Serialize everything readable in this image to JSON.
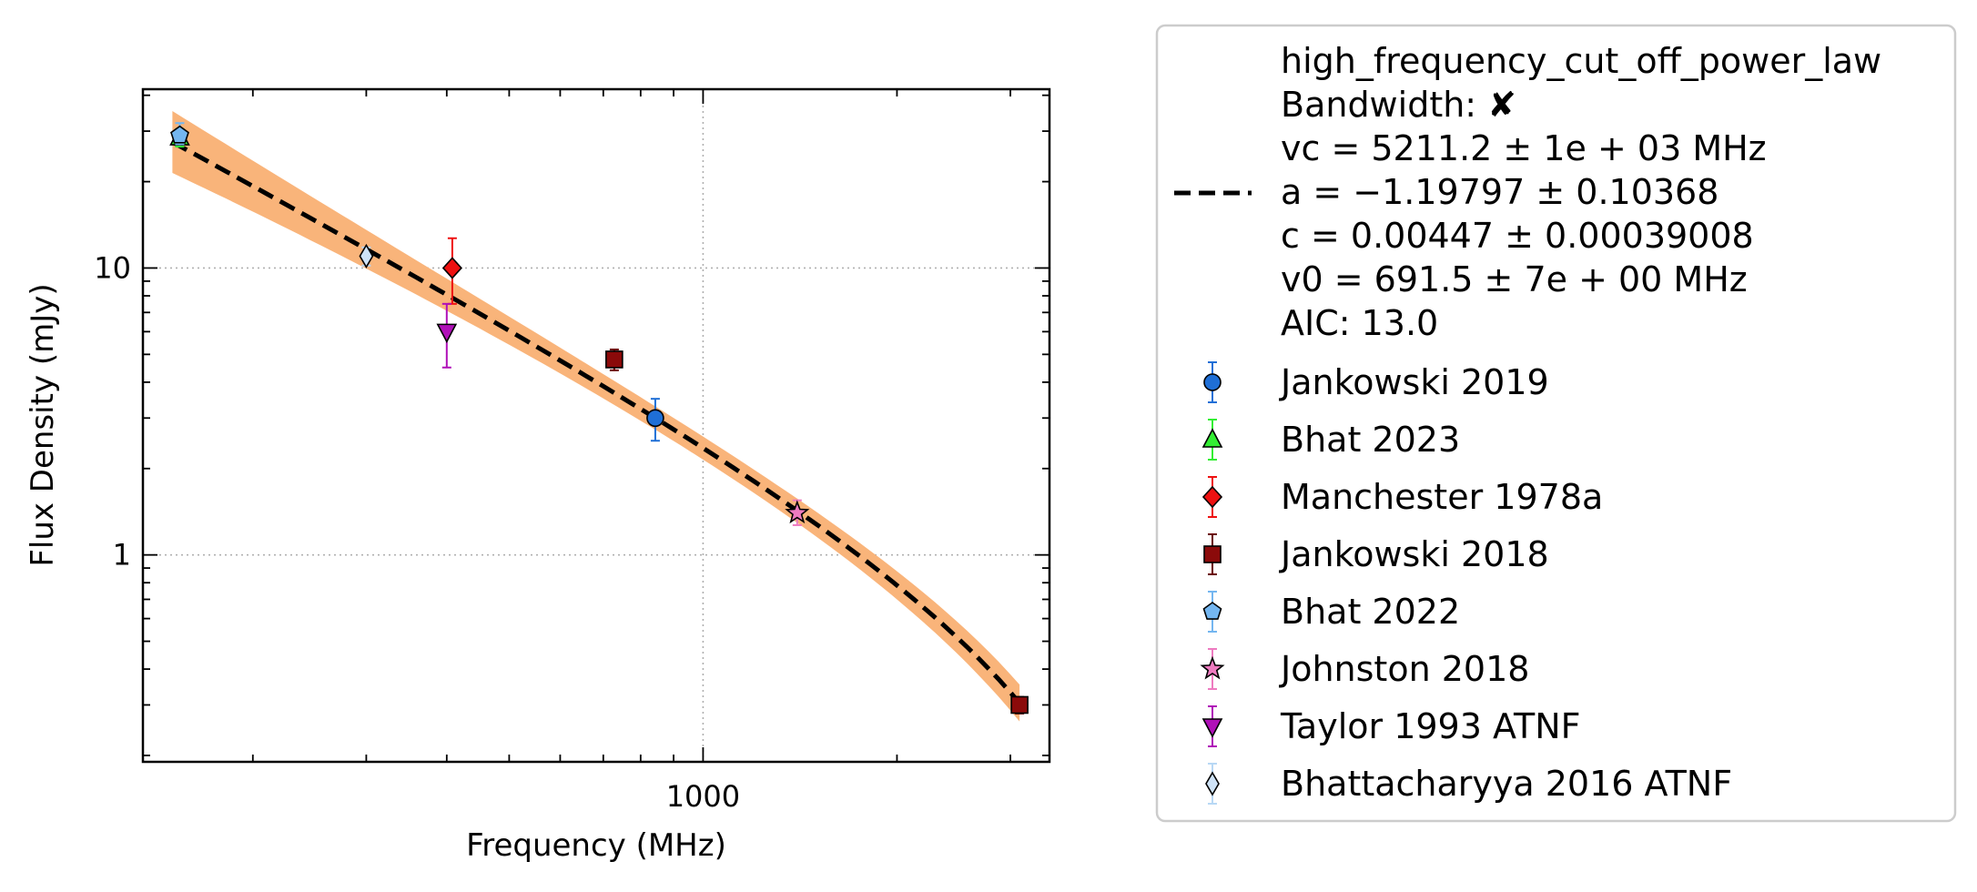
{
  "chart_data": {
    "type": "scatter",
    "xlabel": "Frequency (MHz)",
    "ylabel": "Flux Density (mJy)",
    "x_scale": "log",
    "y_scale": "log",
    "xlim": [
      135,
      3450
    ],
    "ylim": [
      0.19,
      42
    ],
    "x_ticks": [
      {
        "value": 1000,
        "label": "1000"
      }
    ],
    "y_ticks": [
      {
        "value": 1,
        "label": "1"
      },
      {
        "value": 10,
        "label": "10"
      }
    ],
    "grid": true,
    "legend_position": "right, outside plot",
    "fit": {
      "model": "high_frequency_cut_off_power_law",
      "lines": [
        "high_frequency_cut_off_power_law",
        "Bandwidth: ✘",
        "vc = 5211.2 ± 1e + 03 MHz",
        "a = −1.19797 ± 0.10368",
        "c = 0.00447 ± 0.00039008",
        "v0 = 691.5 ± 7e + 00 MHz",
        "AIC: 13.0"
      ],
      "params": {
        "vc": 5211.2,
        "a": -1.19797,
        "c": 0.00447,
        "v0": 691.5
      },
      "x_range": [
        150,
        3100
      ],
      "line_color": "#000000",
      "band_color": "#f9b47a"
    },
    "series": [
      {
        "name": "Jankowski 2019",
        "marker": "circle",
        "color": "#1f6fd6",
        "err_color": "#1f6fd6",
        "points": [
          {
            "x": 843,
            "y": 3.0,
            "ylo": 2.5,
            "yhi": 3.5
          }
        ]
      },
      {
        "name": "Bhat 2023",
        "marker": "triangle-up",
        "color": "#33ee33",
        "err_color": "#33ee33",
        "points": [
          {
            "x": 154,
            "y": 28.5,
            "ylo": 26.5,
            "yhi": 30.5
          }
        ]
      },
      {
        "name": "Manchester 1978a",
        "marker": "diamond",
        "color": "#ee1111",
        "err_color": "#ee1111",
        "points": [
          {
            "x": 408,
            "y": 10.0,
            "ylo": 7.5,
            "yhi": 12.7
          }
        ]
      },
      {
        "name": "Jankowski 2018",
        "marker": "square",
        "color": "#8b0a0a",
        "err_color": "#6b0000",
        "points": [
          {
            "x": 728,
            "y": 4.8,
            "ylo": 4.4,
            "yhi": 5.2
          },
          {
            "x": 3100,
            "y": 0.3,
            "ylo": 0.28,
            "yhi": 0.32
          }
        ]
      },
      {
        "name": "Bhat 2022",
        "marker": "pentagon",
        "color": "#74b6f0",
        "err_color": "#74b6f0",
        "points": [
          {
            "x": 154,
            "y": 29.0,
            "ylo": 27.0,
            "yhi": 32.0
          }
        ]
      },
      {
        "name": "Johnston 2018",
        "marker": "star",
        "color": "#ee7bc0",
        "err_color": "#ee7bc0",
        "points": [
          {
            "x": 1400,
            "y": 1.4,
            "ylo": 1.27,
            "yhi": 1.55
          }
        ]
      },
      {
        "name": "Taylor 1993 ATNF",
        "marker": "triangle-down",
        "color": "#b010b8",
        "err_color": "#b010b8",
        "points": [
          {
            "x": 400,
            "y": 6.0,
            "ylo": 4.5,
            "yhi": 7.5
          }
        ]
      },
      {
        "name": "Bhattacharyya 2016 ATNF",
        "marker": "thin-diamond",
        "color": "#cfe3f7",
        "err_color": "#b8d8f5",
        "points": [
          {
            "x": 300,
            "y": 11.0,
            "ylo": 10.2,
            "yhi": 11.8
          }
        ]
      }
    ]
  }
}
